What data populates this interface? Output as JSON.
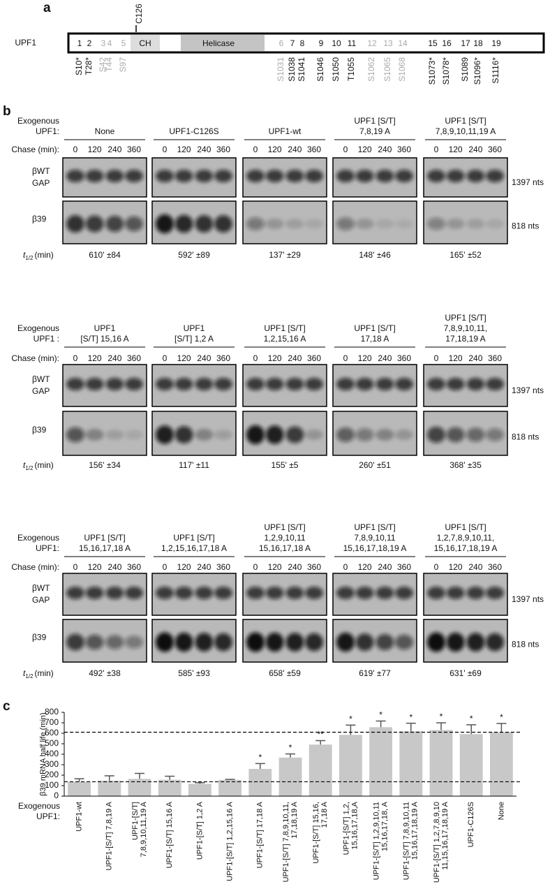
{
  "panel_a": {
    "label": "a",
    "protein": "UPF1",
    "site_label": "C126",
    "domains": [
      "CH",
      "Helicase"
    ],
    "sites": [
      {
        "num": "1",
        "name": "S10*",
        "gray": false
      },
      {
        "num": "2",
        "name": "T28*",
        "gray": false
      },
      {
        "num": "3",
        "name": "S42",
        "gray": true
      },
      {
        "num": "4",
        "name": "T44",
        "gray": true
      },
      {
        "num": "5",
        "name": "S97",
        "gray": true
      },
      {
        "num": "6",
        "name": "S1031",
        "gray": true
      },
      {
        "num": "7",
        "name": "S1038",
        "gray": false
      },
      {
        "num": "8",
        "name": "S1041",
        "gray": false
      },
      {
        "num": "9",
        "name": "S1046",
        "gray": false
      },
      {
        "num": "10",
        "name": "S1050",
        "gray": false
      },
      {
        "num": "11",
        "name": "T1055",
        "gray": false
      },
      {
        "num": "12",
        "name": "S1062",
        "gray": true
      },
      {
        "num": "13",
        "name": "S1065",
        "gray": true
      },
      {
        "num": "14",
        "name": "S1068",
        "gray": true
      },
      {
        "num": "15",
        "name": "S1073*",
        "gray": false
      },
      {
        "num": "16",
        "name": "S1078*",
        "gray": false
      },
      {
        "num": "17",
        "name": "S1089",
        "gray": false
      },
      {
        "num": "18",
        "name": "S1096*",
        "gray": false
      },
      {
        "num": "19",
        "name": "S1116*",
        "gray": false
      }
    ]
  },
  "panel_b": {
    "label": "b",
    "rows": [
      {
        "exogenous": [
          "Exogenous",
          "UPF1:"
        ],
        "chase": "Chase (min):",
        "lanes": [
          0,
          120,
          240,
          360
        ],
        "upper": [
          "βWT",
          "GAP"
        ],
        "lower": "β39",
        "upper_size": "1397 nts",
        "lower_size": "818 nts",
        "t": "t",
        "t_sub": "1/2",
        "t_unit": "(min)",
        "conditions": [
          [
            "None"
          ],
          [
            "UPF1-C126S"
          ],
          [
            "UPF1-wt"
          ],
          [
            "UPF1 [S/T]",
            "7,8,19 A"
          ],
          [
            "UPF1 [S/T]",
            "7,8,9,10,11,19 A"
          ]
        ],
        "half_lives": [
          "610' ±84",
          "592' ±89",
          "137' ±29",
          "148' ±46",
          "165' ±52"
        ]
      },
      {
        "exogenous": [
          "Exogenous",
          "UPF1 :"
        ],
        "chase": "Chase (min):",
        "lanes": [
          0,
          120,
          240,
          360
        ],
        "upper": [
          "βWT",
          "GAP"
        ],
        "lower": "β39",
        "upper_size": "1397 nts",
        "lower_size": "818 nts",
        "t": "t",
        "t_sub": "1/2",
        "t_unit": "(min)",
        "conditions": [
          [
            "UPF1",
            "[S/T] 15,16 A"
          ],
          [
            "UPF1",
            "[S/T] 1,2 A"
          ],
          [
            "UPF1 [S/T]",
            "1,2,15,16 A"
          ],
          [
            "UPF1 [S/T]",
            "17,18 A"
          ],
          [
            "UPF1 [S/T]",
            "7,8,9,10,11,",
            "17,18,19 A"
          ]
        ],
        "half_lives": [
          "156' ±34",
          "117' ±11",
          "155' ±5",
          "260' ±51",
          "368' ±35"
        ]
      },
      {
        "exogenous": [
          "Exogenous",
          "UPF1:"
        ],
        "chase": "Chase (min):",
        "lanes": [
          0,
          120,
          240,
          360
        ],
        "upper": [
          "βWT",
          "GAP"
        ],
        "lower": "β39",
        "upper_size": "1397 nts",
        "lower_size": "818 nts",
        "t": "t",
        "t_sub": "1/2",
        "t_unit": "(min)",
        "conditions": [
          [
            "UPF1 [S/T]",
            "15,16,17,18 A"
          ],
          [
            "UPF1 [S/T]",
            "1,2,15,16,17,18 A"
          ],
          [
            "UPF1 [S/T]",
            "1,2,9,10,11",
            "15,16,17,18 A"
          ],
          [
            "UPF1 [S/T]",
            "7,8,9,10,11",
            "15,16,17,18,19 A"
          ],
          [
            "UPF1 [S/T]",
            "1,2,7,8,9,10,11,",
            "15,16,17,18,19 A"
          ]
        ],
        "half_lives": [
          "492' ±38",
          "585' ±93",
          "658' ±59",
          "619' ±77",
          "631' ±69"
        ]
      }
    ]
  },
  "chart_data": {
    "type": "bar",
    "label": "c",
    "y_label": "β39 mRNA half life (min)",
    "x_label": [
      "Exogenous",
      "UPF1:"
    ],
    "categories": [
      [
        "UPF1-wt"
      ],
      [
        "UPF1-[S/T] 7,8,19 A"
      ],
      [
        "UPF1-[S/T]",
        "7,8,9,10,11,19 A"
      ],
      [
        "UPF1-[S/T] 15,16 A"
      ],
      [
        "UPF1-[S/T] 1,2 A"
      ],
      [
        "UPF1-[S/T] 1,2,15,16 A"
      ],
      [
        "UPF1-[S/T] 17,18 A"
      ],
      [
        "UPF1-[S/T] 7,8,9,10,11,",
        "17,18,19 A"
      ],
      [
        "UPF1-[S/T] 15,16,",
        "17,18 A"
      ],
      [
        "UPF1-[S/T] 1,2,",
        "15,16,17,18,A"
      ],
      [
        "UPF1-[S/T] 1,2,9,10,11",
        "15,16,17,18, A"
      ],
      [
        "UPF1-[S/T] 7,8,9,10,11",
        "15,16,17,18,19 A"
      ],
      [
        "UPF1-[S/T] 1,2,7,8,9,10",
        "11,15,16,17,18,19 A"
      ],
      [
        "UPF1-C126S"
      ],
      [
        "None"
      ]
    ],
    "values": [
      137,
      148,
      165,
      156,
      117,
      155,
      260,
      368,
      492,
      585,
      658,
      619,
      631,
      592,
      610
    ],
    "errors": [
      29,
      46,
      52,
      34,
      11,
      5,
      51,
      35,
      38,
      93,
      59,
      77,
      69,
      89,
      84
    ],
    "significance": [
      null,
      null,
      null,
      null,
      null,
      null,
      "*",
      "*",
      "**",
      "*",
      "*",
      "*",
      "*",
      "*",
      "*"
    ],
    "reference_lines": [
      137,
      610
    ],
    "color": "#c8c8c8",
    "ylim": [
      0,
      800
    ],
    "yticks": [
      0,
      100,
      200,
      300,
      400,
      500,
      600,
      700,
      800
    ]
  }
}
